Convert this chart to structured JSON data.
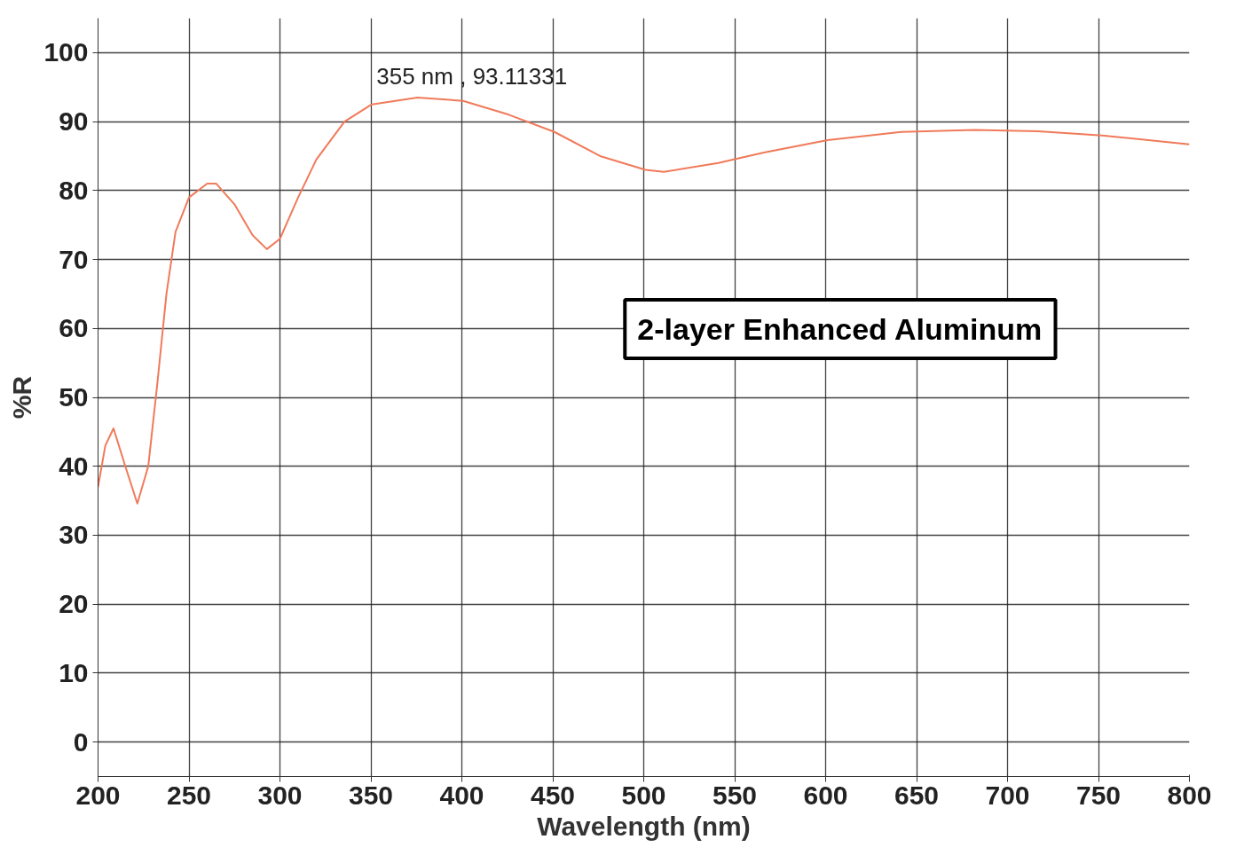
{
  "chart_data": {
    "type": "line",
    "xlabel": "Wavelength (nm)",
    "ylabel": "%R",
    "xlim": [
      200,
      800
    ],
    "ylim": [
      -5,
      105
    ],
    "xticks": [
      200,
      250,
      300,
      350,
      400,
      450,
      500,
      550,
      600,
      650,
      700,
      750,
      800
    ],
    "yticks": [
      0,
      10,
      20,
      30,
      40,
      50,
      60,
      70,
      80,
      90,
      100
    ],
    "grid": true,
    "marker": "none",
    "line_style": "solid",
    "annotations": [
      {
        "text": "355 nm , 93.11331",
        "x": 355,
        "y": 93.11331
      },
      "2-layer Enhanced Aluminum"
    ],
    "series": [
      {
        "color": "#f07a5a",
        "x": [
          200,
          204,
          208.5,
          215,
          221.6,
          227.6,
          232.6,
          237.6,
          242.6,
          250,
          260,
          265,
          275,
          285,
          292.8,
          300,
          310,
          320,
          335.5,
          350.5,
          375.6,
          400.7,
          425.8,
          450.9,
          476,
          501,
          511,
          541,
          566,
          601,
          641.5,
          681.7,
          716.8,
          752,
          800
        ],
        "values": [
          37,
          43,
          45.5,
          40,
          34.6,
          40,
          52,
          65,
          74,
          79,
          81,
          81,
          78,
          73.5,
          71.5,
          73,
          79,
          84.5,
          90,
          92.5,
          93.5,
          93,
          91,
          88.5,
          85,
          83,
          82.7,
          84,
          85.5,
          87.3,
          88.5,
          88.8,
          88.6,
          88,
          86.7
        ]
      }
    ]
  }
}
